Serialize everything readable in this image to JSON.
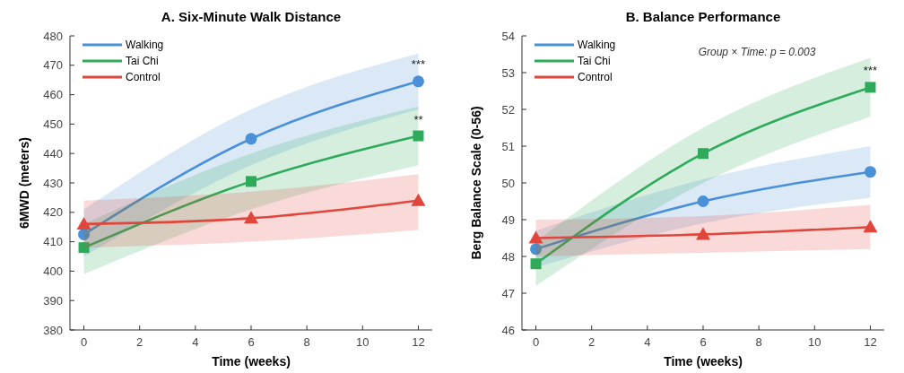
{
  "chart_data": [
    {
      "type": "line",
      "title": "A. Six-Minute Walk Distance",
      "xlabel": "Time (weeks)",
      "ylabel": "6MWD (meters)",
      "x": [
        0,
        6,
        12
      ],
      "xlim": [
        -0.5,
        12.5
      ],
      "xticks": [
        0,
        2,
        4,
        6,
        8,
        10,
        12
      ],
      "ylim": [
        380,
        480
      ],
      "yticks": [
        380,
        390,
        400,
        410,
        420,
        430,
        440,
        450,
        460,
        470,
        480
      ],
      "grid": false,
      "legend": "top left",
      "line_style": "solid",
      "series": [
        {
          "name": "Walking",
          "color": "#4a90d9",
          "marker": "circle",
          "values": [
            412.5,
            445,
            464.5
          ],
          "lower": [
            405,
            436,
            455
          ],
          "upper": [
            421,
            455,
            474
          ]
        },
        {
          "name": "Tai Chi",
          "color": "#2eaa5a",
          "marker": "square",
          "values": [
            408,
            430.5,
            446
          ],
          "lower": [
            399,
            421,
            436
          ],
          "upper": [
            416,
            440,
            456
          ]
        },
        {
          "name": "Control",
          "color": "#e0463c",
          "marker": "triangle",
          "values": [
            416,
            418,
            424
          ],
          "lower": [
            408,
            410,
            414
          ],
          "upper": [
            424,
            427,
            433
          ]
        }
      ],
      "annotations": [
        {
          "text": "***",
          "y": 469
        },
        {
          "text": "**",
          "y": 450
        }
      ]
    },
    {
      "type": "line",
      "title": "B. Balance Performance",
      "xlabel": "Time (weeks)",
      "ylabel": "Berg Balance Scale (0-56)",
      "x": [
        0,
        6,
        12
      ],
      "xlim": [
        -0.5,
        12.5
      ],
      "xticks": [
        0,
        2,
        4,
        6,
        8,
        10,
        12
      ],
      "ylim": [
        46,
        54
      ],
      "yticks": [
        46,
        47,
        48,
        49,
        50,
        51,
        52,
        53,
        54
      ],
      "grid": false,
      "legend": "top left",
      "line_style": "solid",
      "series": [
        {
          "name": "Walking",
          "color": "#4a90d9",
          "marker": "circle",
          "values": [
            48.2,
            49.5,
            50.3
          ],
          "lower": [
            47.7,
            48.9,
            49.6
          ],
          "upper": [
            48.7,
            50.1,
            51.0
          ]
        },
        {
          "name": "Tai Chi",
          "color": "#2eaa5a",
          "marker": "square",
          "values": [
            47.8,
            50.8,
            52.6
          ],
          "lower": [
            47.2,
            50.0,
            51.8
          ],
          "upper": [
            48.4,
            51.5,
            53.4
          ]
        },
        {
          "name": "Control",
          "color": "#e0463c",
          "marker": "triangle",
          "values": [
            48.5,
            48.6,
            48.8
          ],
          "lower": [
            48.0,
            48.1,
            48.2
          ],
          "upper": [
            49.0,
            49.1,
            49.4
          ]
        }
      ],
      "annotations": [
        "Group × Time: p = 0.003",
        {
          "text": "***",
          "y": 52.95
        }
      ]
    }
  ]
}
